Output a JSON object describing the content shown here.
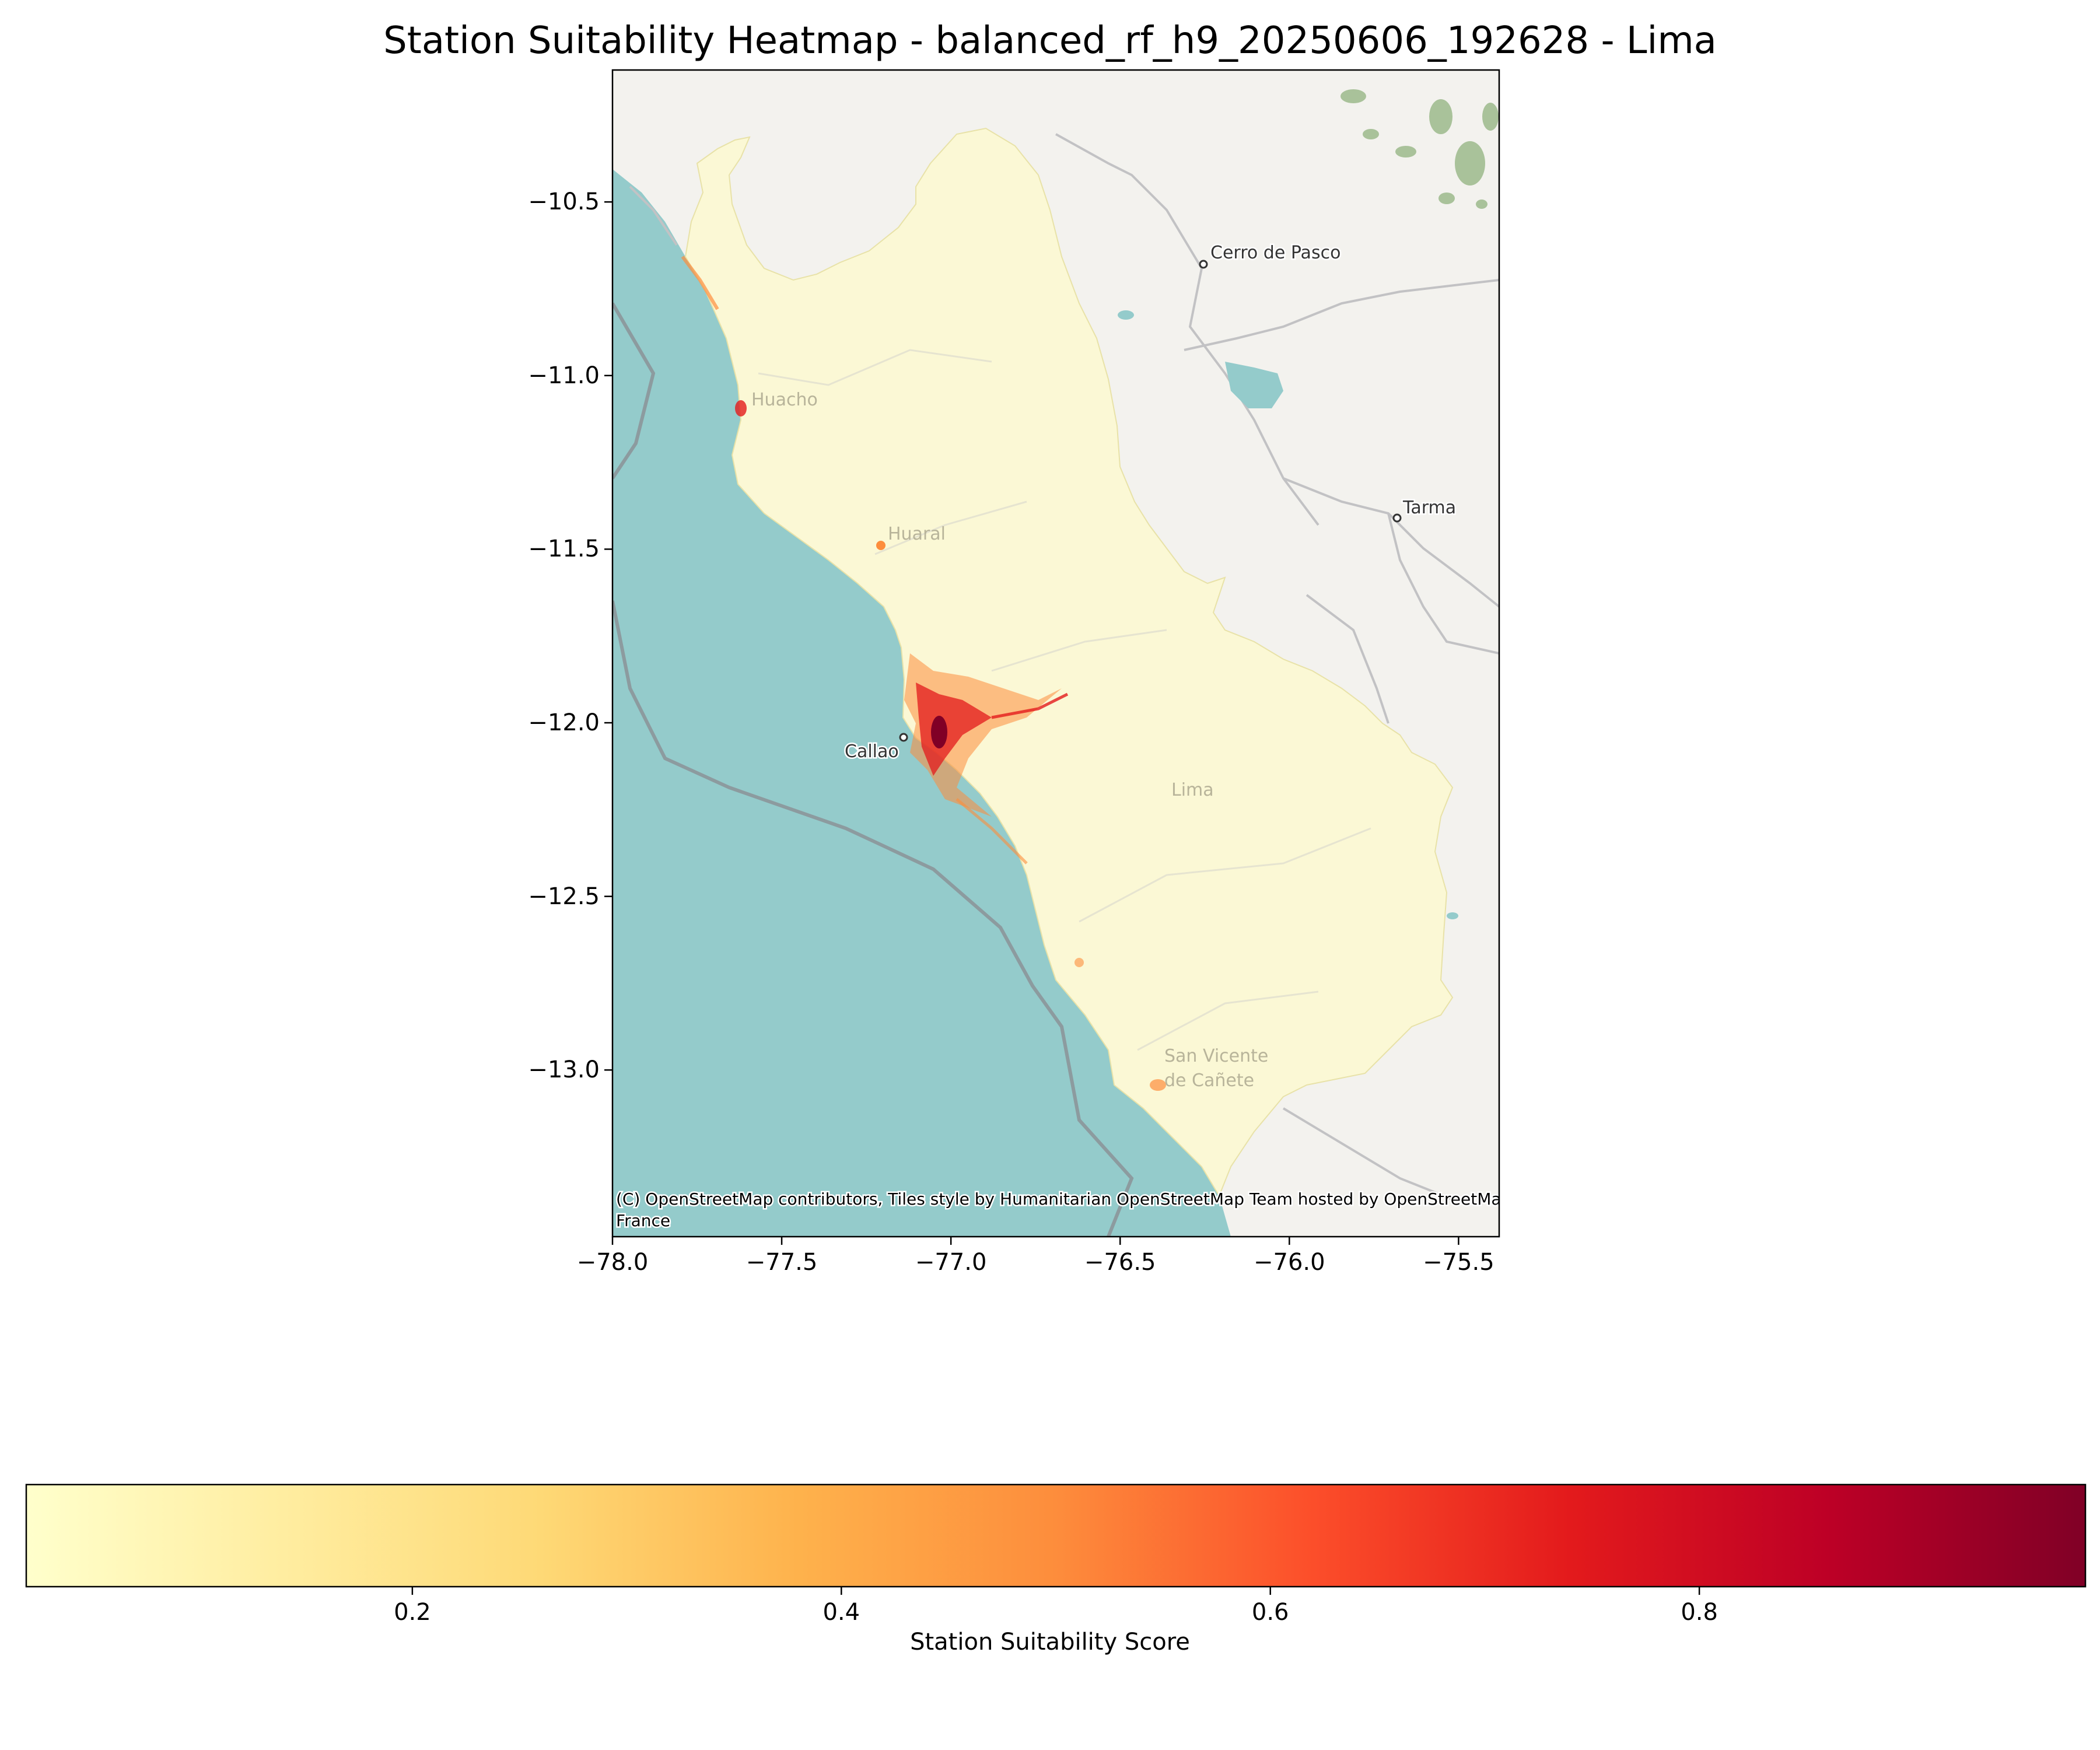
{
  "title": "Station Suitability Heatmap - balanced_rf_h9_20250606_192628 - Lima",
  "map": {
    "attribution_line1": "(C) OpenStreetMap contributors, Tiles style by Humanitarian OpenStreetMap Team hosted by OpenStreetMap",
    "attribution_line2": "France",
    "place_labels": {
      "cerro_de_pasco": "Cerro de Pasco",
      "tarma": "Tarma",
      "huacho": "Huacho",
      "huaral": "Huaral",
      "callao": "Callao",
      "lima": "Lima",
      "san_vicente_1": "San Vicente",
      "san_vicente_2": "de Cañete"
    },
    "x_range": [
      -78.0,
      -75.38
    ],
    "y_range": [
      -13.48,
      -10.12
    ],
    "x_ticks": [
      "−78.0",
      "−77.5",
      "−77.0",
      "−76.5",
      "−76.0",
      "−75.5"
    ],
    "x_tick_values": [
      -78.0,
      -77.5,
      -77.0,
      -76.5,
      -76.0,
      -75.5
    ],
    "y_ticks": [
      "−10.5",
      "−11.0",
      "−11.5",
      "−12.0",
      "−12.5",
      "−13.0"
    ],
    "y_tick_values": [
      -10.5,
      -11.0,
      -11.5,
      -12.0,
      -12.5,
      -13.0
    ],
    "colors": {
      "ocean": "#94cbcb",
      "land": "#f3f2ee",
      "region_fill": "#fbf8d5",
      "hotspot": "#b10026",
      "vegetation": "#a9c29a"
    }
  },
  "colorbar": {
    "label": "Station Suitability Score",
    "colormap": "YlOrRd",
    "range": [
      0.02,
      0.98
    ],
    "ticks": [
      "0.2",
      "0.4",
      "0.6",
      "0.8"
    ],
    "tick_values": [
      0.2,
      0.4,
      0.6,
      0.8
    ],
    "stops": [
      "#ffffcc",
      "#ffeda0",
      "#fed976",
      "#feb24c",
      "#fd8d3c",
      "#fc4e2a",
      "#e31a1c",
      "#bd0026",
      "#800026"
    ]
  }
}
